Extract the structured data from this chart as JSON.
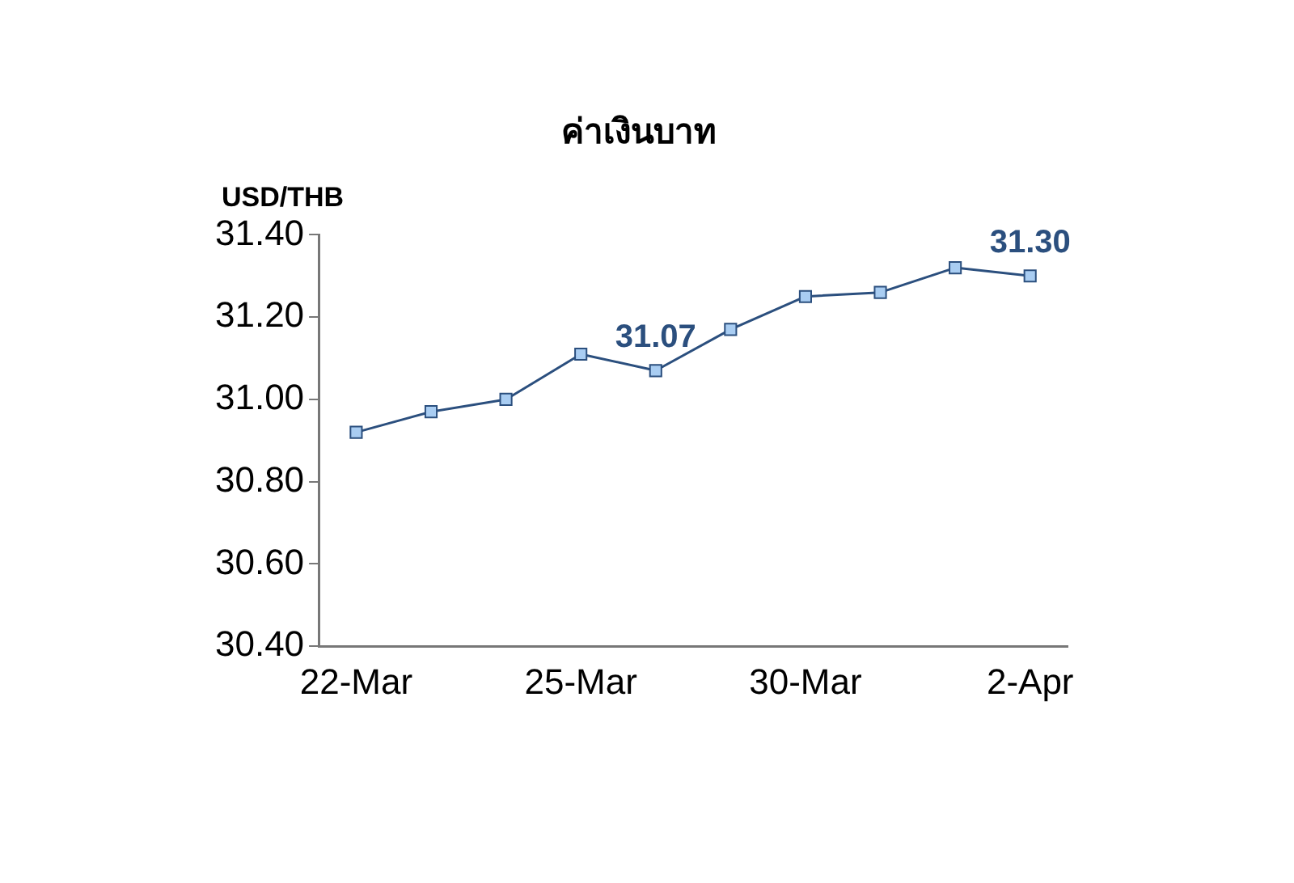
{
  "chart_data": {
    "type": "line",
    "title": "ค่าเงินบาท",
    "ylabel": "USD/THB",
    "categories": [
      "22-Mar",
      null,
      null,
      "25-Mar",
      null,
      null,
      "30-Mar",
      null,
      null,
      "2-Apr"
    ],
    "series": [
      {
        "color": "#2b4f7e",
        "values": [
          30.92,
          30.97,
          31.0,
          31.11,
          31.07,
          31.17,
          31.25,
          31.26,
          31.32,
          31.3
        ],
        "value_labels": [
          null,
          null,
          null,
          null,
          "31.07",
          null,
          null,
          null,
          null,
          "31.30"
        ]
      }
    ],
    "ylim": [
      30.4,
      31.4
    ],
    "yticks": [
      {
        "value": 30.4,
        "label": "30.40"
      },
      {
        "value": 30.6,
        "label": "30.60"
      },
      {
        "value": 30.8,
        "label": "30.80"
      },
      {
        "value": 31.0,
        "label": "31.00"
      },
      {
        "value": 31.2,
        "label": "31.20"
      },
      {
        "value": 31.4,
        "label": "31.40"
      }
    ],
    "grid": false,
    "legend": false,
    "marker": "square",
    "line_style": "solid"
  }
}
